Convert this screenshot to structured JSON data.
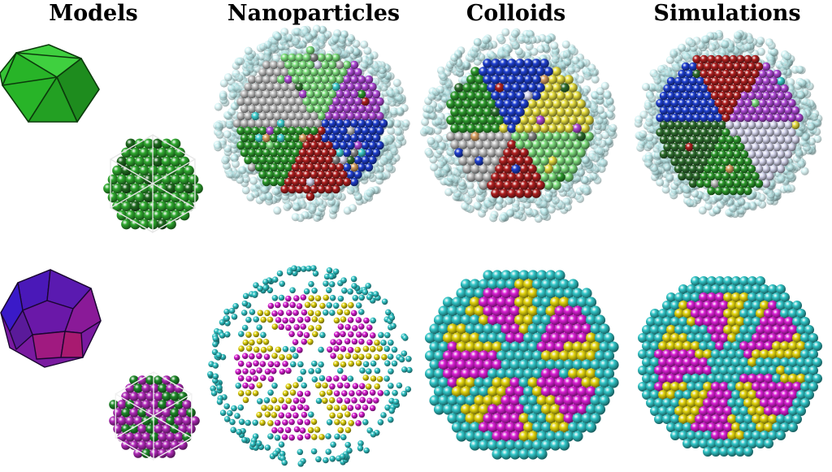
{
  "headings": {
    "models": "Models",
    "nanoparticles": "Nanoparticles",
    "colloids": "Colloids",
    "simulations": "Simulations"
  },
  "colors": {
    "model_top": "#22aa22",
    "model_bottom": "#8a1aa0",
    "shell_cyan": "#31c6c8",
    "shell_faint": "#bff0f2",
    "yellow": "#e2d40e",
    "magenta": "#d81ed2",
    "domain_palette": [
      "#2e9b2e",
      "#7fe07f",
      "#c0c0c0",
      "#b04ad8",
      "#1e3fd0",
      "#b02020",
      "#d8d8f0",
      "#3fd0d0",
      "#e8e040",
      "#8a8a8a",
      "#2f6f2f",
      "#d8a060"
    ]
  }
}
